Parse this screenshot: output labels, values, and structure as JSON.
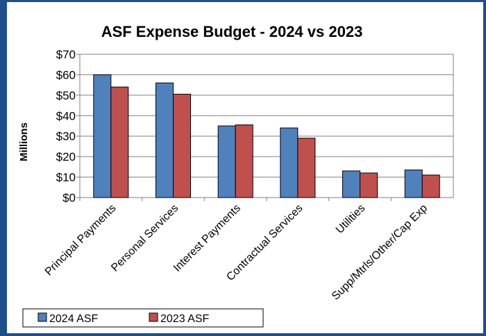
{
  "chart_data": {
    "type": "bar",
    "title": "ASF Expense Budget - 2024 vs 2023",
    "ylabel": "Millions",
    "xlabel": "",
    "ylim": [
      0,
      70
    ],
    "y_ticks": [
      "$0",
      "$10",
      "$20",
      "$30",
      "$40",
      "$50",
      "$60",
      "$70"
    ],
    "categories": [
      "Principal Payments",
      "Personal Services",
      "Interest Payments",
      "Contractual Services",
      "Utilities",
      "Supp/Mtrls/Other/Cap Exp"
    ],
    "series": [
      {
        "name": "2024 ASF",
        "color": "#4f81bd",
        "values": [
          60,
          56,
          35,
          34,
          13,
          13.5
        ]
      },
      {
        "name": "2023 ASF",
        "color": "#c0504d",
        "values": [
          54,
          50.5,
          35.5,
          29,
          12,
          11
        ]
      }
    ],
    "grid": true,
    "legend": "bottom-left"
  },
  "colors": {
    "frame": "#1f4e8c",
    "plot_background": "#ffffff"
  }
}
